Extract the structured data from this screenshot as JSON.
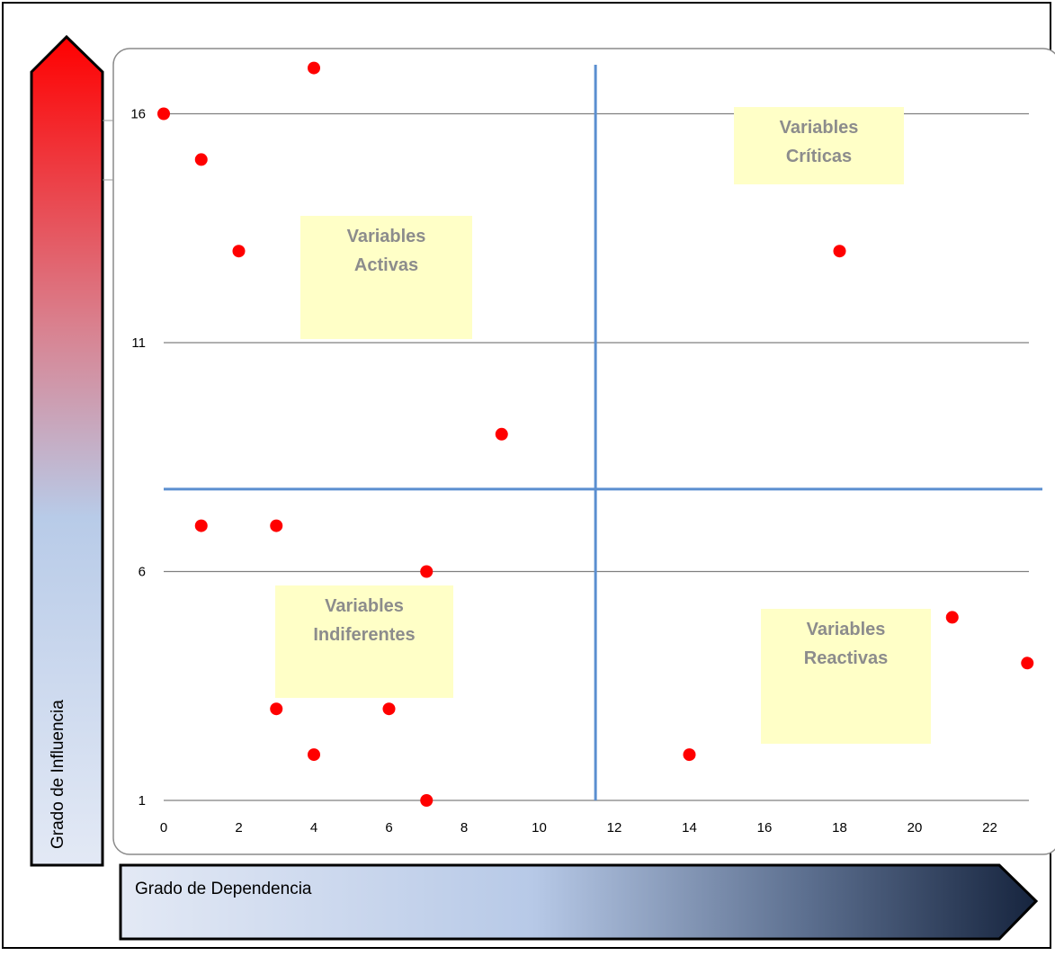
{
  "chart_data": {
    "type": "scatter",
    "xlim": [
      0,
      23
    ],
    "ylim": [
      1,
      16
    ],
    "x_ticks": [
      0,
      2,
      4,
      6,
      8,
      10,
      12,
      14,
      16,
      18,
      20,
      22
    ],
    "y_ticks": [
      1,
      6,
      11,
      16
    ],
    "gridlines": "horizontal",
    "quadrant_lines": {
      "x": 11.5,
      "y": 7.8
    },
    "points": [
      {
        "x": 0,
        "y": 16
      },
      {
        "x": 1,
        "y": 15
      },
      {
        "x": 2,
        "y": 13
      },
      {
        "x": 4,
        "y": 17
      },
      {
        "x": 9,
        "y": 9
      },
      {
        "x": 1,
        "y": 7
      },
      {
        "x": 3,
        "y": 7
      },
      {
        "x": 7,
        "y": 6
      },
      {
        "x": 3,
        "y": 3
      },
      {
        "x": 6,
        "y": 3
      },
      {
        "x": 4,
        "y": 2
      },
      {
        "x": 7,
        "y": 1
      },
      {
        "x": 14,
        "y": 2
      },
      {
        "x": 18,
        "y": 13
      },
      {
        "x": 21,
        "y": 5
      },
      {
        "x": 23,
        "y": 4
      }
    ],
    "quadrant_labels": [
      {
        "lines": [
          "Variables",
          "Activas"
        ]
      },
      {
        "lines": [
          "Variables",
          "Críticas"
        ]
      },
      {
        "lines": [
          "Variables",
          "Indiferentes"
        ]
      },
      {
        "lines": [
          "Variables",
          "Reactivas"
        ]
      }
    ],
    "xlabel": "Grado de Dependencia",
    "ylabel": "Grado de Influencia"
  },
  "colors": {
    "point": "#ff0000",
    "quadrant_line": "#5b8fd0",
    "gridline": "#808080",
    "note_fill": "#ffffc7",
    "note_text": "#8c8c8c",
    "influence_gradient": [
      "#ff0000",
      "#d9818f",
      "#b8cbe8",
      "#e3e9f5"
    ],
    "dependence_gradient": [
      "#e3e9f5",
      "#b7c9e7",
      "#5c6f8f",
      "#16243e"
    ]
  }
}
